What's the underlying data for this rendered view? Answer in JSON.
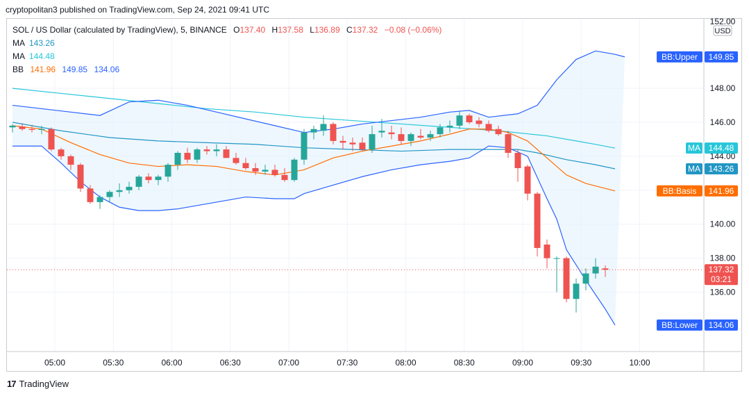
{
  "header": {
    "publisher": "cryptopolitan3 published on TradingView.com, Sep 24, 2021 09:41 UTC"
  },
  "legend": {
    "symbol": "SOL / US Dollar (calculated by TradingView), 5, BINANCE",
    "o_label": "O",
    "o": "137.40",
    "h_label": "H",
    "h": "137.58",
    "l_label": "L",
    "l": "136.89",
    "c_label": "C",
    "c": "137.32",
    "change": "−0.08 (−0.06%)",
    "ma1_label": "MA",
    "ma1": "143.26",
    "ma2_label": "MA",
    "ma2": "144.48",
    "bb_label": "BB",
    "bb_basis": "141.96",
    "bb_upper": "149.85",
    "bb_lower": "134.06"
  },
  "footer": {
    "brand": "TradingView",
    "logo": "17"
  },
  "colors": {
    "up": "#26a69a",
    "down": "#ef5350",
    "bb": "#2962ff",
    "bb_fill": "#e3f2fd",
    "bb_basis": "#ff6d00",
    "ma_fast": "#2196c4",
    "ma_slow": "#26c6da",
    "grid": "#f0f3fa",
    "axis_text": "#131722"
  },
  "chart_data": {
    "type": "candlestick",
    "price_axis": {
      "ticks": [
        136.0,
        138.0,
        140.0,
        142.0,
        144.0,
        146.0,
        148.0
      ],
      "tick_labels": [
        "136.00",
        "138.00",
        "140.00",
        "144.00",
        "146.00",
        "148.00"
      ],
      "top_label": "152.00",
      "currency": "USD",
      "ylim": [
        132.3,
        152.2
      ]
    },
    "time_axis": {
      "labels": [
        "05:00",
        "05:30",
        "06:00",
        "06:30",
        "07:00",
        "07:30",
        "08:00",
        "08:30",
        "09:00",
        "09:30",
        "10:00"
      ]
    },
    "interval_minutes": 5,
    "candles": [
      {
        "t": "04:41",
        "o": 145.7,
        "h": 145.9,
        "l": 145.4,
        "c": 145.8
      },
      {
        "t": "04:46",
        "o": 145.75,
        "h": 145.95,
        "l": 145.5,
        "c": 145.6
      },
      {
        "t": "04:51",
        "o": 145.6,
        "h": 145.85,
        "l": 145.4,
        "c": 145.55
      },
      {
        "t": "04:56",
        "o": 145.55,
        "h": 145.8,
        "l": 145.3,
        "c": 145.6
      },
      {
        "t": "05:01",
        "o": 145.6,
        "h": 145.7,
        "l": 144.3,
        "c": 144.4
      },
      {
        "t": "05:06",
        "o": 144.4,
        "h": 144.5,
        "l": 143.8,
        "c": 144.0
      },
      {
        "t": "05:11",
        "o": 144.0,
        "h": 144.1,
        "l": 143.2,
        "c": 143.5
      },
      {
        "t": "05:16",
        "o": 143.5,
        "h": 143.6,
        "l": 141.9,
        "c": 142.1
      },
      {
        "t": "05:21",
        "o": 142.1,
        "h": 142.3,
        "l": 141.2,
        "c": 141.3
      },
      {
        "t": "05:26",
        "o": 141.3,
        "h": 141.7,
        "l": 140.9,
        "c": 141.6
      },
      {
        "t": "05:31",
        "o": 141.6,
        "h": 142.0,
        "l": 141.3,
        "c": 141.9
      },
      {
        "t": "05:36",
        "o": 141.9,
        "h": 142.4,
        "l": 141.6,
        "c": 142.0
      },
      {
        "t": "05:41",
        "o": 142.0,
        "h": 142.5,
        "l": 141.8,
        "c": 142.2
      },
      {
        "t": "05:46",
        "o": 142.2,
        "h": 142.9,
        "l": 142.0,
        "c": 142.8
      },
      {
        "t": "05:51",
        "o": 142.8,
        "h": 143.0,
        "l": 142.4,
        "c": 142.6
      },
      {
        "t": "05:56",
        "o": 142.6,
        "h": 142.9,
        "l": 142.3,
        "c": 142.8
      },
      {
        "t": "06:01",
        "o": 142.8,
        "h": 143.6,
        "l": 142.5,
        "c": 143.5
      },
      {
        "t": "06:06",
        "o": 143.5,
        "h": 144.3,
        "l": 143.2,
        "c": 144.2
      },
      {
        "t": "06:11",
        "o": 144.2,
        "h": 144.5,
        "l": 143.6,
        "c": 143.8
      },
      {
        "t": "06:16",
        "o": 143.8,
        "h": 144.5,
        "l": 143.6,
        "c": 144.4
      },
      {
        "t": "06:21",
        "o": 144.4,
        "h": 144.6,
        "l": 144.1,
        "c": 144.3
      },
      {
        "t": "06:26",
        "o": 144.3,
        "h": 144.7,
        "l": 144.0,
        "c": 144.4
      },
      {
        "t": "06:31",
        "o": 144.4,
        "h": 144.6,
        "l": 143.9,
        "c": 143.9
      },
      {
        "t": "06:36",
        "o": 143.9,
        "h": 144.2,
        "l": 143.5,
        "c": 143.6
      },
      {
        "t": "06:41",
        "o": 143.6,
        "h": 143.9,
        "l": 143.2,
        "c": 143.3
      },
      {
        "t": "06:46",
        "o": 143.3,
        "h": 143.6,
        "l": 142.9,
        "c": 143.1
      },
      {
        "t": "06:51",
        "o": 143.1,
        "h": 143.5,
        "l": 142.9,
        "c": 143.2
      },
      {
        "t": "06:56",
        "o": 143.2,
        "h": 143.5,
        "l": 142.8,
        "c": 142.9
      },
      {
        "t": "07:01",
        "o": 142.9,
        "h": 143.3,
        "l": 142.5,
        "c": 142.6
      },
      {
        "t": "07:06",
        "o": 142.6,
        "h": 143.9,
        "l": 142.5,
        "c": 143.8
      },
      {
        "t": "07:11",
        "o": 143.8,
        "h": 145.6,
        "l": 143.5,
        "c": 145.4
      },
      {
        "t": "07:16",
        "o": 145.4,
        "h": 145.8,
        "l": 145.0,
        "c": 145.6
      },
      {
        "t": "07:21",
        "o": 145.5,
        "h": 146.4,
        "l": 145.2,
        "c": 145.9
      },
      {
        "t": "07:26",
        "o": 145.9,
        "h": 146.0,
        "l": 144.7,
        "c": 144.9
      },
      {
        "t": "07:31",
        "o": 144.9,
        "h": 145.2,
        "l": 144.4,
        "c": 144.8
      },
      {
        "t": "07:36",
        "o": 144.8,
        "h": 145.1,
        "l": 144.3,
        "c": 144.7
      },
      {
        "t": "07:41",
        "o": 144.8,
        "h": 145.1,
        "l": 144.3,
        "c": 144.4
      },
      {
        "t": "07:46",
        "o": 144.4,
        "h": 145.8,
        "l": 144.2,
        "c": 145.3
      },
      {
        "t": "07:51",
        "o": 145.4,
        "h": 146.2,
        "l": 145.1,
        "c": 145.5
      },
      {
        "t": "07:56",
        "o": 145.4,
        "h": 145.8,
        "l": 145.0,
        "c": 145.3
      },
      {
        "t": "08:01",
        "o": 145.3,
        "h": 145.7,
        "l": 144.7,
        "c": 144.9
      },
      {
        "t": "08:06",
        "o": 144.9,
        "h": 145.4,
        "l": 144.6,
        "c": 145.3
      },
      {
        "t": "08:11",
        "o": 145.2,
        "h": 145.6,
        "l": 145.0,
        "c": 145.1
      },
      {
        "t": "08:16",
        "o": 145.1,
        "h": 145.5,
        "l": 144.9,
        "c": 145.3
      },
      {
        "t": "08:21",
        "o": 145.3,
        "h": 145.9,
        "l": 145.1,
        "c": 145.7
      },
      {
        "t": "08:26",
        "o": 145.7,
        "h": 146.1,
        "l": 145.4,
        "c": 145.8
      },
      {
        "t": "08:31",
        "o": 145.8,
        "h": 146.7,
        "l": 145.6,
        "c": 146.4
      },
      {
        "t": "08:36",
        "o": 146.4,
        "h": 146.5,
        "l": 145.9,
        "c": 146.0
      },
      {
        "t": "08:41",
        "o": 146.1,
        "h": 146.3,
        "l": 145.7,
        "c": 145.9
      },
      {
        "t": "08:46",
        "o": 145.9,
        "h": 146.1,
        "l": 145.4,
        "c": 145.5
      },
      {
        "t": "08:51",
        "o": 145.6,
        "h": 145.8,
        "l": 145.2,
        "c": 145.3
      },
      {
        "t": "08:56",
        "o": 145.3,
        "h": 145.5,
        "l": 143.9,
        "c": 144.2
      },
      {
        "t": "09:01",
        "o": 144.2,
        "h": 144.4,
        "l": 142.5,
        "c": 143.3
      },
      {
        "t": "09:06",
        "o": 143.4,
        "h": 143.5,
        "l": 141.4,
        "c": 141.8
      },
      {
        "t": "09:11",
        "o": 141.8,
        "h": 141.9,
        "l": 138.1,
        "c": 138.6
      },
      {
        "t": "09:16",
        "o": 138.8,
        "h": 139.1,
        "l": 137.4,
        "c": 138.0
      },
      {
        "t": "09:21",
        "o": 138.0,
        "h": 138.1,
        "l": 136.0,
        "c": 138.0
      },
      {
        "t": "09:26",
        "o": 138.0,
        "h": 138.1,
        "l": 135.4,
        "c": 135.6
      },
      {
        "t": "09:31",
        "o": 135.6,
        "h": 136.8,
        "l": 134.8,
        "c": 136.5
      },
      {
        "t": "09:36",
        "o": 136.5,
        "h": 137.4,
        "l": 136.1,
        "c": 137.1
      },
      {
        "t": "09:41",
        "o": 137.1,
        "h": 138.0,
        "l": 136.8,
        "c": 137.5
      },
      {
        "t": "09:46",
        "o": 137.4,
        "h": 137.58,
        "l": 136.89,
        "c": 137.32
      }
    ],
    "bb_upper": [
      [
        0,
        147.0
      ],
      [
        6,
        146.6
      ],
      [
        9,
        146.4
      ],
      [
        12,
        147.2
      ],
      [
        15,
        147.3
      ],
      [
        18,
        147.0
      ],
      [
        21,
        146.6
      ],
      [
        24,
        146.2
      ],
      [
        27,
        145.8
      ],
      [
        30,
        145.4
      ],
      [
        33,
        145.6
      ],
      [
        36,
        145.9
      ],
      [
        39,
        146.1
      ],
      [
        42,
        146.3
      ],
      [
        45,
        146.6
      ],
      [
        47,
        146.7
      ],
      [
        49,
        146.3
      ],
      [
        52,
        146.5
      ],
      [
        54,
        147.0
      ],
      [
        56,
        148.5
      ],
      [
        58,
        149.7
      ],
      [
        60,
        150.2
      ],
      [
        62,
        150.0
      ],
      [
        63,
        149.85
      ]
    ],
    "bb_lower": [
      [
        0,
        144.6
      ],
      [
        3,
        144.6
      ],
      [
        5,
        143.6
      ],
      [
        7,
        142.5
      ],
      [
        9,
        141.6
      ],
      [
        11,
        141.0
      ],
      [
        13,
        140.8
      ],
      [
        15,
        140.8
      ],
      [
        17,
        140.9
      ],
      [
        19,
        141.1
      ],
      [
        21,
        141.3
      ],
      [
        24,
        141.6
      ],
      [
        27,
        141.5
      ],
      [
        29,
        141.5
      ],
      [
        30,
        141.8
      ],
      [
        33,
        142.3
      ],
      [
        36,
        142.8
      ],
      [
        39,
        143.2
      ],
      [
        42,
        143.5
      ],
      [
        45,
        143.7
      ],
      [
        47,
        143.9
      ],
      [
        49,
        144.6
      ],
      [
        51,
        144.5
      ],
      [
        53,
        144.0
      ],
      [
        55,
        141.5
      ],
      [
        56,
        140.3
      ],
      [
        57,
        138.5
      ],
      [
        59,
        136.7
      ],
      [
        61,
        135.0
      ],
      [
        62,
        134.06
      ]
    ],
    "bb_basis": [
      [
        0,
        145.8
      ],
      [
        3,
        145.6
      ],
      [
        6,
        144.8
      ],
      [
        9,
        144.1
      ],
      [
        12,
        143.6
      ],
      [
        15,
        143.4
      ],
      [
        18,
        143.5
      ],
      [
        21,
        143.4
      ],
      [
        24,
        143.1
      ],
      [
        27,
        142.9
      ],
      [
        30,
        143.2
      ],
      [
        33,
        143.9
      ],
      [
        36,
        144.3
      ],
      [
        39,
        144.6
      ],
      [
        42,
        144.9
      ],
      [
        45,
        145.3
      ],
      [
        47,
        145.6
      ],
      [
        49,
        145.6
      ],
      [
        51,
        145.4
      ],
      [
        53,
        144.9
      ],
      [
        55,
        143.9
      ],
      [
        57,
        142.9
      ],
      [
        59,
        142.4
      ],
      [
        62,
        141.96
      ]
    ],
    "ma_fast": [
      [
        0,
        146.0
      ],
      [
        5,
        145.5
      ],
      [
        10,
        145.1
      ],
      [
        15,
        144.9
      ],
      [
        20,
        144.8
      ],
      [
        25,
        144.7
      ],
      [
        30,
        144.5
      ],
      [
        35,
        144.4
      ],
      [
        40,
        144.3
      ],
      [
        45,
        144.4
      ],
      [
        50,
        144.4
      ],
      [
        52,
        144.4
      ],
      [
        54,
        144.2
      ],
      [
        57,
        143.8
      ],
      [
        60,
        143.5
      ],
      [
        62,
        143.26
      ]
    ],
    "ma_slow": [
      [
        0,
        148.0
      ],
      [
        5,
        147.7
      ],
      [
        10,
        147.4
      ],
      [
        15,
        147.1
      ],
      [
        20,
        146.8
      ],
      [
        25,
        146.6
      ],
      [
        30,
        146.3
      ],
      [
        35,
        146.1
      ],
      [
        40,
        145.9
      ],
      [
        45,
        145.7
      ],
      [
        50,
        145.5
      ],
      [
        55,
        145.2
      ],
      [
        58,
        144.9
      ],
      [
        60,
        144.7
      ],
      [
        62,
        144.48
      ]
    ],
    "labels": [
      {
        "name": "bb-upper-label",
        "text": "BB:Upper",
        "value": "149.85",
        "price": 149.85,
        "color": "#2962ff"
      },
      {
        "name": "ma-slow-label",
        "text": "MA",
        "value": "144.48",
        "price": 144.48,
        "color": "#26c6da"
      },
      {
        "name": "ma-fast-label",
        "text": "MA",
        "value": "143.26",
        "price": 143.26,
        "color": "#2196c4"
      },
      {
        "name": "bb-basis-label",
        "text": "BB:Basis",
        "value": "141.96",
        "price": 141.96,
        "color": "#ff6d00"
      },
      {
        "name": "bb-lower-label",
        "text": "BB:Lower",
        "value": "134.06",
        "price": 134.06,
        "color": "#2962ff"
      }
    ],
    "last_price": {
      "value": "137.32",
      "countdown": "03:21",
      "price": 137.32,
      "color": "#ef5350"
    }
  }
}
